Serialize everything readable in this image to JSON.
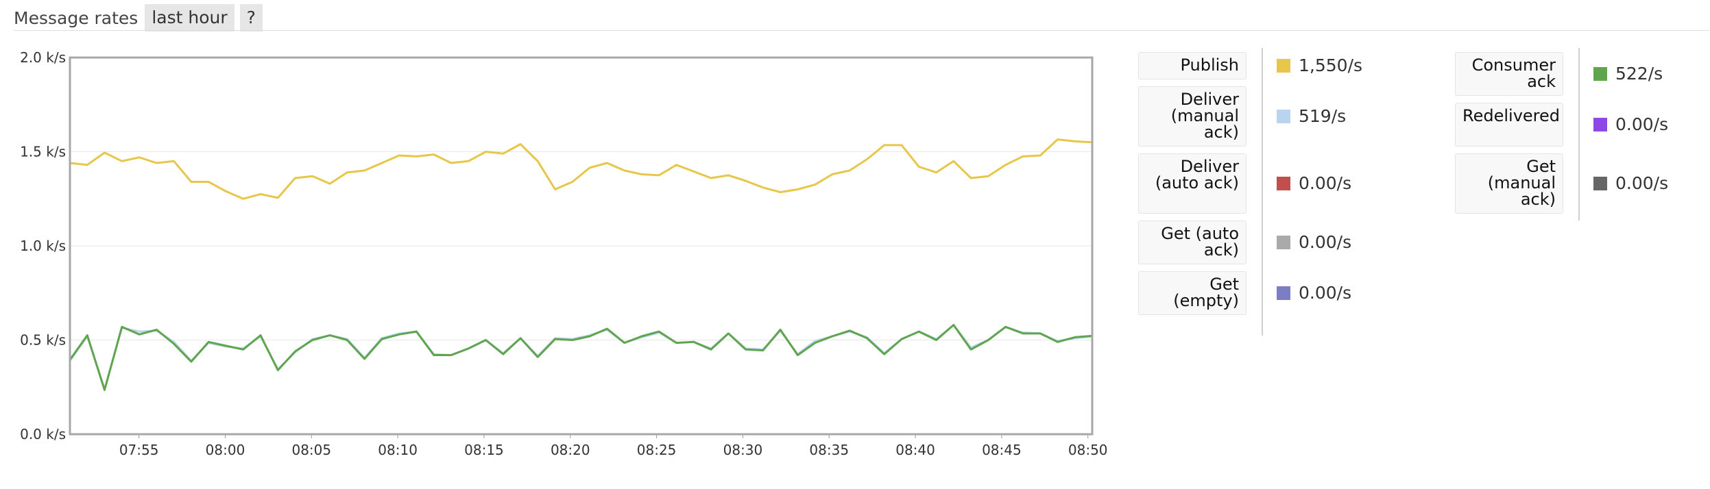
{
  "header": {
    "title": "Message rates",
    "period": "last hour",
    "help": "?"
  },
  "legend": {
    "left": [
      {
        "label": "Publish",
        "value": "1,550/s",
        "color": "#e8c64a"
      },
      {
        "label": "Deliver (manual ack)",
        "value": "519/s",
        "color": "#b9d4ef"
      },
      {
        "label": "Deliver (auto ack)",
        "value": "0.00/s",
        "color": "#c24e4e"
      },
      {
        "label": "Get (auto ack)",
        "value": "0.00/s",
        "color": "#aaaaaa"
      },
      {
        "label": "Get (empty)",
        "value": "0.00/s",
        "color": "#7b7ec4"
      }
    ],
    "right": [
      {
        "label": "Consumer ack",
        "value": "522/s",
        "color": "#5fa54e"
      },
      {
        "label": "Redelivered",
        "value": "0.00/s",
        "color": "#8e48e4"
      },
      {
        "label": "Get (manual ack)",
        "value": "0.00/s",
        "color": "#666666"
      }
    ]
  },
  "chart_data": {
    "type": "line",
    "yticks": [
      "0.0 k/s",
      "0.5 k/s",
      "1.0 k/s",
      "1.5 k/s",
      "2.0 k/s"
    ],
    "ylim": [
      0,
      2000
    ],
    "xticks": [
      "07:55",
      "08:00",
      "08:05",
      "08:10",
      "08:15",
      "08:20",
      "08:25",
      "08:30",
      "08:35",
      "08:40",
      "08:45",
      "08:50"
    ],
    "xlim": [
      "07:51",
      "08:50:15"
    ],
    "grid": true,
    "series": [
      {
        "name": "Publish",
        "color": "#e8c64a",
        "values": [
          1440,
          1430,
          1495,
          1450,
          1470,
          1440,
          1450,
          1340,
          1340,
          1290,
          1250,
          1275,
          1255,
          1360,
          1370,
          1330,
          1390,
          1400,
          1440,
          1480,
          1475,
          1485,
          1440,
          1450,
          1500,
          1490,
          1540,
          1450,
          1300,
          1340,
          1415,
          1440,
          1400,
          1380,
          1375,
          1430,
          1395,
          1360,
          1375,
          1345,
          1310,
          1285,
          1300,
          1325,
          1380,
          1400,
          1460,
          1535,
          1535,
          1420,
          1390,
          1450,
          1360,
          1370,
          1430,
          1475,
          1480,
          1565,
          1555,
          1550
        ]
      },
      {
        "name": "Deliver (manual ack)",
        "color": "#b9d4ef",
        "values": [
          390,
          520,
          240,
          565,
          545,
          550,
          490,
          390,
          485,
          465,
          455,
          520,
          345,
          435,
          505,
          525,
          505,
          405,
          510,
          535,
          545,
          425,
          420,
          455,
          500,
          430,
          510,
          415,
          510,
          505,
          525,
          555,
          485,
          515,
          540,
          485,
          490,
          455,
          535,
          455,
          450,
          550,
          425,
          495,
          520,
          545,
          515,
          430,
          505,
          545,
          505,
          580,
          460,
          500,
          570,
          540,
          535,
          495,
          510,
          519
        ]
      },
      {
        "name": "Consumer ack",
        "color": "#5fa54e",
        "values": [
          395,
          525,
          235,
          570,
          530,
          555,
          480,
          385,
          490,
          470,
          450,
          525,
          340,
          440,
          500,
          525,
          500,
          400,
          505,
          530,
          545,
          420,
          420,
          455,
          500,
          425,
          510,
          410,
          505,
          500,
          520,
          560,
          485,
          520,
          545,
          485,
          490,
          450,
          535,
          450,
          445,
          555,
          420,
          485,
          520,
          550,
          510,
          425,
          505,
          545,
          500,
          580,
          450,
          500,
          570,
          535,
          535,
          490,
          515,
          522
        ]
      },
      {
        "name": "Deliver (auto ack)",
        "color": "#c24e4e",
        "values": [
          0,
          0
        ]
      },
      {
        "name": "Get (auto ack)",
        "color": "#aaaaaa",
        "values": [
          0,
          0
        ]
      },
      {
        "name": "Get (empty)",
        "color": "#7b7ec4",
        "values": [
          0,
          0
        ]
      },
      {
        "name": "Redelivered",
        "color": "#8e48e4",
        "values": [
          0,
          0
        ]
      },
      {
        "name": "Get (manual ack)",
        "color": "#666666",
        "values": [
          0,
          0
        ]
      }
    ]
  }
}
